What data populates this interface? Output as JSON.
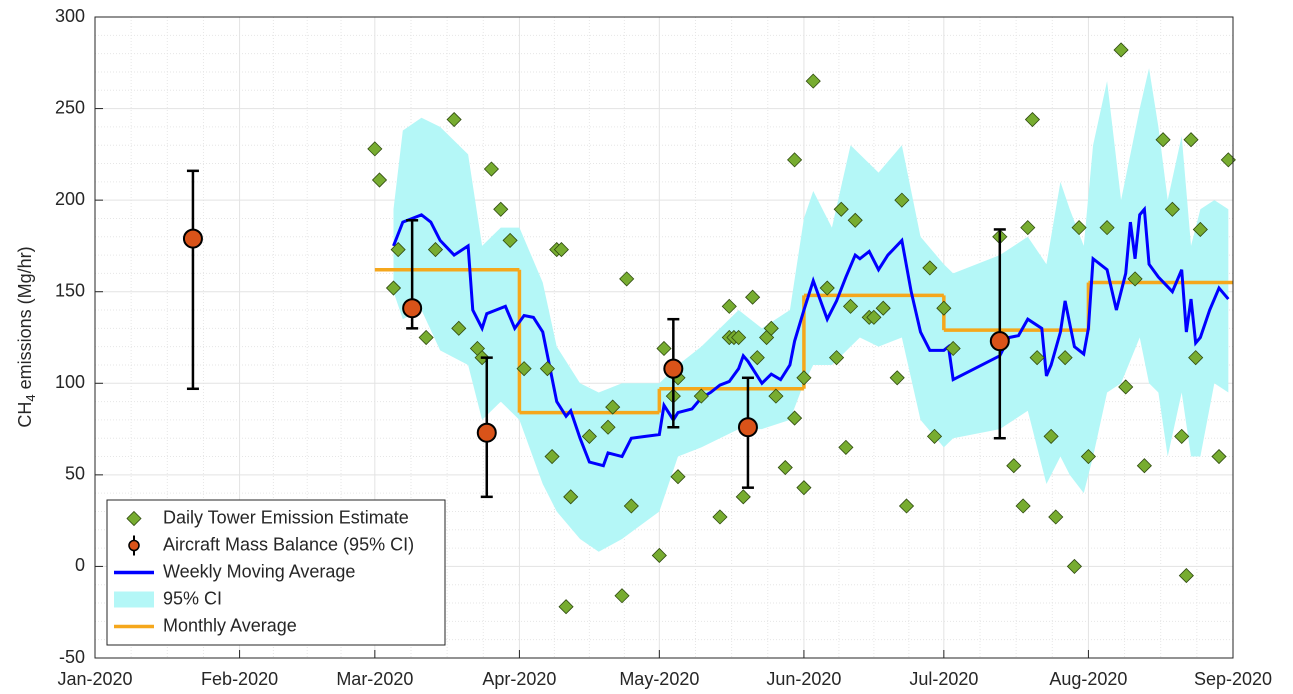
{
  "chart_data": {
    "type": "combo",
    "ylabel": {
      "main": "CH",
      "sub": "4",
      "rest": "emissions (Mg/hr)"
    },
    "xlim": [
      0,
      244
    ],
    "xticks": [
      {
        "value": 0,
        "label": "Jan-2020"
      },
      {
        "value": 31,
        "label": "Feb-2020"
      },
      {
        "value": 60,
        "label": "Mar-2020"
      },
      {
        "value": 91,
        "label": "Apr-2020"
      },
      {
        "value": 121,
        "label": "May-2020"
      },
      {
        "value": 152,
        "label": "Jun-2020"
      },
      {
        "value": 182,
        "label": "Jul-2020"
      },
      {
        "value": 213,
        "label": "Aug-2020"
      },
      {
        "value": 244,
        "label": "Sep-2020"
      }
    ],
    "ylim": [
      -50,
      300
    ],
    "yticks": [
      -50,
      0,
      50,
      100,
      150,
      200,
      250,
      300
    ],
    "grid": true,
    "minor_grid": true,
    "legend": "lower-left",
    "series": [
      {
        "name": "Daily Tower Emission Estimate",
        "type": "scatter",
        "color": "#77ac30",
        "x": [
          60,
          61,
          64,
          65,
          71,
          73,
          77,
          78,
          82,
          83,
          85,
          87,
          89,
          92,
          97,
          98,
          99,
          100,
          101,
          102,
          106,
          110,
          111,
          113,
          114,
          115,
          121,
          122,
          124,
          125,
          125,
          130,
          134,
          136,
          136,
          137,
          138,
          141,
          139,
          142,
          144,
          145,
          146,
          148,
          150,
          150,
          152,
          152,
          154,
          157,
          159,
          160,
          161,
          162,
          163,
          166,
          167,
          169,
          172,
          173,
          174,
          179,
          180,
          182,
          184,
          194,
          197,
          199,
          200,
          201,
          202,
          205,
          206,
          208,
          210,
          211,
          213,
          217,
          220,
          221,
          223,
          225,
          229,
          231,
          233,
          234,
          235,
          236,
          237,
          241,
          243
        ],
        "values": [
          228,
          211,
          152,
          173,
          125,
          173,
          244,
          130,
          119,
          114,
          217,
          195,
          178,
          108,
          108,
          60,
          173,
          173,
          -22,
          38,
          71,
          76,
          87,
          -16,
          157,
          33,
          6,
          119,
          93,
          103,
          49,
          93,
          27,
          142,
          125,
          125,
          125,
          147,
          38,
          114,
          125,
          130,
          93,
          54,
          81,
          222,
          43,
          103,
          265,
          152,
          114,
          195,
          65,
          142,
          189,
          136,
          136,
          141,
          103,
          200,
          33,
          163,
          71,
          141,
          119,
          180,
          55,
          33,
          185,
          244,
          114,
          71,
          27,
          114,
          0,
          185,
          60,
          185,
          282,
          98,
          157,
          55,
          233,
          195,
          71,
          -5,
          233,
          114,
          184,
          60,
          222
        ]
      },
      {
        "name": "Aircraft Mass Balance (95% CI)",
        "type": "errorbar",
        "color": "#d95319",
        "x": [
          21,
          68,
          84,
          124,
          140,
          194
        ],
        "values": [
          179,
          141,
          73,
          108,
          76,
          123
        ],
        "lower": [
          97,
          130,
          38,
          76,
          43,
          70
        ],
        "upper": [
          216,
          189,
          114,
          135,
          103,
          184
        ]
      },
      {
        "name": "Weekly Moving Average",
        "type": "line",
        "color": "#0000ff",
        "x": [
          64,
          66,
          70,
          72,
          74,
          77,
          80,
          81,
          83,
          84,
          86,
          88,
          90,
          92,
          94,
          96,
          99,
          101,
          102,
          104,
          106,
          109,
          110,
          113,
          115,
          118,
          121,
          122,
          124,
          125,
          128,
          130,
          132,
          134,
          136,
          138,
          139,
          140,
          143,
          145,
          147,
          149,
          150,
          152,
          154,
          157,
          159,
          161,
          163,
          164,
          166,
          168,
          170,
          173,
          175,
          177,
          179,
          182,
          183,
          184,
          194,
          196,
          198,
          200,
          203,
          204,
          205,
          207,
          208,
          210,
          212,
          213,
          214,
          217,
          219,
          221,
          222,
          223,
          224,
          225,
          226,
          228,
          231,
          233,
          234,
          235,
          236,
          237,
          239,
          241,
          243
        ],
        "values": [
          175,
          188,
          192,
          188,
          178,
          170,
          175,
          140,
          130,
          138,
          140,
          142,
          130,
          137,
          136,
          128,
          90,
          82,
          85,
          70,
          57,
          55,
          62,
          60,
          70,
          71,
          72,
          88,
          80,
          84,
          86,
          92,
          95,
          99,
          101,
          108,
          115,
          112,
          100,
          105,
          102,
          110,
          123,
          140,
          156,
          135,
          145,
          158,
          170,
          168,
          172,
          162,
          170,
          178,
          150,
          128,
          118,
          118,
          120,
          102,
          115,
          125,
          126,
          135,
          130,
          104,
          110,
          128,
          145,
          120,
          116,
          130,
          168,
          162,
          140,
          160,
          188,
          168,
          192,
          195,
          165,
          158,
          150,
          162,
          128,
          146,
          122,
          125,
          140,
          152,
          146
        ]
      },
      {
        "name": "95% CI",
        "type": "band",
        "color": "#b4f7f7",
        "x": [
          64,
          66,
          70,
          74,
          80,
          83,
          87,
          91,
          96,
          99,
          104,
          108,
          113,
          121,
          125,
          130,
          138,
          143,
          149,
          152,
          154,
          158,
          162,
          164,
          168,
          173,
          177,
          182,
          184,
          194,
          200,
          204,
          207,
          209,
          212,
          214,
          217,
          220,
          224,
          226,
          228,
          230,
          233,
          235,
          237,
          240,
          243
        ],
        "upper": [
          195,
          238,
          245,
          240,
          225,
          175,
          185,
          185,
          155,
          120,
          100,
          95,
          100,
          100,
          110,
          120,
          140,
          130,
          140,
          190,
          205,
          185,
          230,
          225,
          215,
          230,
          180,
          165,
          160,
          170,
          180,
          165,
          210,
          195,
          175,
          230,
          265,
          200,
          250,
          272,
          240,
          200,
          235,
          175,
          195,
          200,
          195
        ],
        "lower": [
          150,
          135,
          140,
          118,
          110,
          80,
          90,
          80,
          45,
          30,
          15,
          8,
          15,
          30,
          60,
          65,
          75,
          75,
          80,
          100,
          110,
          110,
          120,
          125,
          120,
          125,
          80,
          65,
          70,
          75,
          85,
          45,
          60,
          50,
          40,
          60,
          95,
          100,
          125,
          100,
          95,
          60,
          95,
          60,
          60,
          100,
          95
        ]
      },
      {
        "name": "Monthly Average",
        "type": "step",
        "color": "#f5a71c",
        "x": [
          60,
          91,
          121,
          152,
          182,
          213
        ],
        "values": [
          162,
          84,
          97,
          148,
          129,
          155
        ]
      }
    ]
  }
}
